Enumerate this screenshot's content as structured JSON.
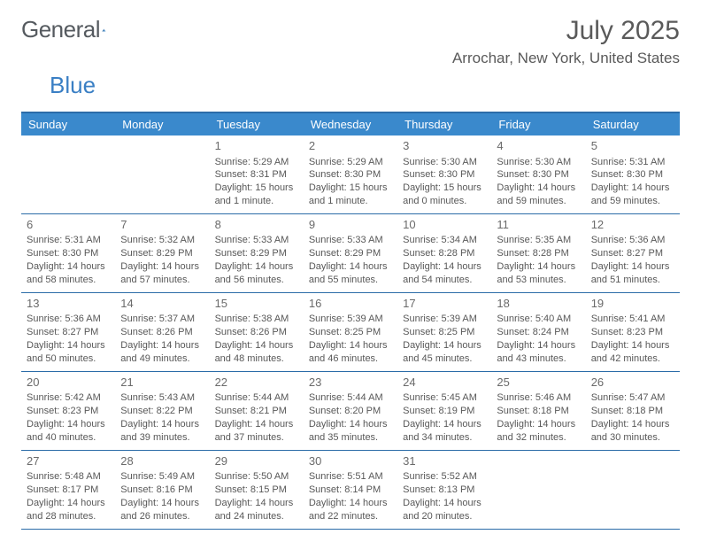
{
  "brand": {
    "word1": "General",
    "word2": "Blue"
  },
  "title": "July 2025",
  "location": "Arrochar, New York, United States",
  "colors": {
    "header_bg": "#3a89cc",
    "border": "#2b6ca8",
    "text": "#585858",
    "title_text": "#5a5a5a",
    "brand_gray": "#555a5f",
    "brand_blue": "#3a7fc4"
  },
  "day_headers": [
    "Sunday",
    "Monday",
    "Tuesday",
    "Wednesday",
    "Thursday",
    "Friday",
    "Saturday"
  ],
  "weeks": [
    [
      null,
      null,
      {
        "n": "1",
        "sr": "5:29 AM",
        "ss": "8:31 PM",
        "dl": "15 hours and 1 minute."
      },
      {
        "n": "2",
        "sr": "5:29 AM",
        "ss": "8:30 PM",
        "dl": "15 hours and 1 minute."
      },
      {
        "n": "3",
        "sr": "5:30 AM",
        "ss": "8:30 PM",
        "dl": "15 hours and 0 minutes."
      },
      {
        "n": "4",
        "sr": "5:30 AM",
        "ss": "8:30 PM",
        "dl": "14 hours and 59 minutes."
      },
      {
        "n": "5",
        "sr": "5:31 AM",
        "ss": "8:30 PM",
        "dl": "14 hours and 59 minutes."
      }
    ],
    [
      {
        "n": "6",
        "sr": "5:31 AM",
        "ss": "8:30 PM",
        "dl": "14 hours and 58 minutes."
      },
      {
        "n": "7",
        "sr": "5:32 AM",
        "ss": "8:29 PM",
        "dl": "14 hours and 57 minutes."
      },
      {
        "n": "8",
        "sr": "5:33 AM",
        "ss": "8:29 PM",
        "dl": "14 hours and 56 minutes."
      },
      {
        "n": "9",
        "sr": "5:33 AM",
        "ss": "8:29 PM",
        "dl": "14 hours and 55 minutes."
      },
      {
        "n": "10",
        "sr": "5:34 AM",
        "ss": "8:28 PM",
        "dl": "14 hours and 54 minutes."
      },
      {
        "n": "11",
        "sr": "5:35 AM",
        "ss": "8:28 PM",
        "dl": "14 hours and 53 minutes."
      },
      {
        "n": "12",
        "sr": "5:36 AM",
        "ss": "8:27 PM",
        "dl": "14 hours and 51 minutes."
      }
    ],
    [
      {
        "n": "13",
        "sr": "5:36 AM",
        "ss": "8:27 PM",
        "dl": "14 hours and 50 minutes."
      },
      {
        "n": "14",
        "sr": "5:37 AM",
        "ss": "8:26 PM",
        "dl": "14 hours and 49 minutes."
      },
      {
        "n": "15",
        "sr": "5:38 AM",
        "ss": "8:26 PM",
        "dl": "14 hours and 48 minutes."
      },
      {
        "n": "16",
        "sr": "5:39 AM",
        "ss": "8:25 PM",
        "dl": "14 hours and 46 minutes."
      },
      {
        "n": "17",
        "sr": "5:39 AM",
        "ss": "8:25 PM",
        "dl": "14 hours and 45 minutes."
      },
      {
        "n": "18",
        "sr": "5:40 AM",
        "ss": "8:24 PM",
        "dl": "14 hours and 43 minutes."
      },
      {
        "n": "19",
        "sr": "5:41 AM",
        "ss": "8:23 PM",
        "dl": "14 hours and 42 minutes."
      }
    ],
    [
      {
        "n": "20",
        "sr": "5:42 AM",
        "ss": "8:23 PM",
        "dl": "14 hours and 40 minutes."
      },
      {
        "n": "21",
        "sr": "5:43 AM",
        "ss": "8:22 PM",
        "dl": "14 hours and 39 minutes."
      },
      {
        "n": "22",
        "sr": "5:44 AM",
        "ss": "8:21 PM",
        "dl": "14 hours and 37 minutes."
      },
      {
        "n": "23",
        "sr": "5:44 AM",
        "ss": "8:20 PM",
        "dl": "14 hours and 35 minutes."
      },
      {
        "n": "24",
        "sr": "5:45 AM",
        "ss": "8:19 PM",
        "dl": "14 hours and 34 minutes."
      },
      {
        "n": "25",
        "sr": "5:46 AM",
        "ss": "8:18 PM",
        "dl": "14 hours and 32 minutes."
      },
      {
        "n": "26",
        "sr": "5:47 AM",
        "ss": "8:18 PM",
        "dl": "14 hours and 30 minutes."
      }
    ],
    [
      {
        "n": "27",
        "sr": "5:48 AM",
        "ss": "8:17 PM",
        "dl": "14 hours and 28 minutes."
      },
      {
        "n": "28",
        "sr": "5:49 AM",
        "ss": "8:16 PM",
        "dl": "14 hours and 26 minutes."
      },
      {
        "n": "29",
        "sr": "5:50 AM",
        "ss": "8:15 PM",
        "dl": "14 hours and 24 minutes."
      },
      {
        "n": "30",
        "sr": "5:51 AM",
        "ss": "8:14 PM",
        "dl": "14 hours and 22 minutes."
      },
      {
        "n": "31",
        "sr": "5:52 AM",
        "ss": "8:13 PM",
        "dl": "14 hours and 20 minutes."
      },
      null,
      null
    ]
  ],
  "labels": {
    "sunrise": "Sunrise:",
    "sunset": "Sunset:",
    "daylight": "Daylight:"
  }
}
